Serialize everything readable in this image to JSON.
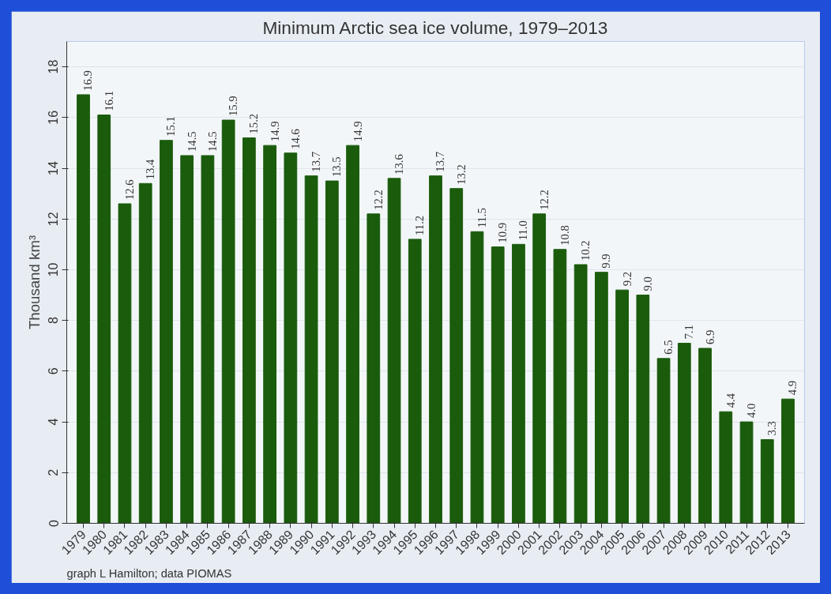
{
  "chart_data": {
    "type": "bar",
    "title": "Minimum Arctic sea ice volume, 1979–2013",
    "ylabel": "Thousand km³",
    "categories": [
      "1979",
      "1980",
      "1981",
      "1982",
      "1983",
      "1984",
      "1985",
      "1986",
      "1987",
      "1988",
      "1989",
      "1990",
      "1991",
      "1992",
      "1993",
      "1994",
      "1995",
      "1996",
      "1997",
      "1998",
      "1999",
      "2000",
      "2001",
      "2002",
      "2003",
      "2004",
      "2005",
      "2006",
      "2007",
      "2008",
      "2009",
      "2010",
      "2011",
      "2012",
      "2013"
    ],
    "values": [
      16.9,
      16.1,
      12.6,
      13.4,
      15.1,
      14.5,
      14.5,
      15.9,
      15.2,
      14.9,
      14.6,
      13.7,
      13.5,
      14.9,
      12.2,
      13.6,
      11.2,
      13.7,
      13.2,
      11.5,
      10.9,
      11.0,
      12.2,
      10.8,
      10.2,
      9.9,
      9.2,
      9.0,
      6.5,
      7.1,
      6.9,
      4.4,
      4.0,
      3.3,
      4.9
    ],
    "value_labels": [
      "16.9",
      "16.1",
      "12.6",
      "13.4",
      "15.1",
      "14.5",
      "14.5",
      "15.9",
      "15.2",
      "14.9",
      "14.6",
      "13.7",
      "13.5",
      "14.9",
      "12.2",
      "13.6",
      "11.2",
      "13.7",
      "13.2",
      "11.5",
      "10.9",
      "11.0",
      "12.2",
      "10.8",
      "10.2",
      "9.9",
      "9.2",
      "9.0",
      "6.5",
      "7.1",
      "6.9",
      "4.4",
      "4.0",
      "3.3",
      "4.9"
    ],
    "color": "#1a5c0c",
    "ylim": [
      0,
      19
    ],
    "yticks": [
      0,
      2,
      4,
      6,
      8,
      10,
      12,
      14,
      16,
      18
    ],
    "grid": "y",
    "annotations": [
      "graph L Hamilton;  data PIOMAS"
    ]
  }
}
